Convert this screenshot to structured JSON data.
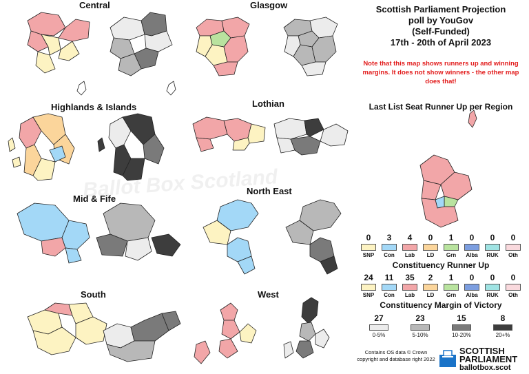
{
  "title_lines": [
    "Scottish Parliament Projection",
    "poll by YouGov",
    "(Self-Funded)",
    "17th - 20th of April 2023"
  ],
  "note": "Note that this map shows runners up and winning margins. It does not show winners - the other map does that!",
  "watermark": "Ballot Box Scotland",
  "regions": [
    "Central",
    "Glasgow",
    "Highlands & Islands",
    "Lothian",
    "Mid & Fife",
    "North East",
    "South",
    "West"
  ],
  "colors": {
    "snp": "#fdf3c2",
    "con": "#a3d8f7",
    "lab": "#f2a6a8",
    "ld": "#fbd59b",
    "grn": "#b9e39f",
    "alba": "#7c9ee0",
    "ruk": "#9fe3e3",
    "oth": "#f9d9dd",
    "m1": "#ececec",
    "m2": "#b8b8b8",
    "m3": "#7a7a7a",
    "m4": "#3d3d3d"
  },
  "list_runner_up": {
    "heading": "Last List Seat Runner Up per Region",
    "parties": [
      {
        "label": "SNP",
        "count": "0",
        "color": "#fdf3c2"
      },
      {
        "label": "Con",
        "count": "3",
        "color": "#a3d8f7"
      },
      {
        "label": "Lab",
        "count": "4",
        "color": "#f2a6a8"
      },
      {
        "label": "LD",
        "count": "0",
        "color": "#fbd59b"
      },
      {
        "label": "Grn",
        "count": "1",
        "color": "#b9e39f"
      },
      {
        "label": "Alba",
        "count": "0",
        "color": "#7c9ee0"
      },
      {
        "label": "RUK",
        "count": "0",
        "color": "#9fe3e3"
      },
      {
        "label": "Oth",
        "count": "0",
        "color": "#f9d9dd"
      }
    ]
  },
  "constituency_runner_up": {
    "heading": "Constituency Runner Up",
    "parties": [
      {
        "label": "SNP",
        "count": "24",
        "color": "#fdf3c2"
      },
      {
        "label": "Con",
        "count": "11",
        "color": "#a3d8f7"
      },
      {
        "label": "Lab",
        "count": "35",
        "color": "#f2a6a8"
      },
      {
        "label": "LD",
        "count": "2",
        "color": "#fbd59b"
      },
      {
        "label": "Grn",
        "count": "1",
        "color": "#b9e39f"
      },
      {
        "label": "Alba",
        "count": "0",
        "color": "#7c9ee0"
      },
      {
        "label": "RUK",
        "count": "0",
        "color": "#9fe3e3"
      },
      {
        "label": "Oth",
        "count": "0",
        "color": "#f9d9dd"
      }
    ]
  },
  "margin": {
    "heading": "Constituency Margin of Victory",
    "bins": [
      {
        "label": "0-5%",
        "count": "27",
        "color": "#ececec"
      },
      {
        "label": "5-10%",
        "count": "23",
        "color": "#b8b8b8"
      },
      {
        "label": "10-20%",
        "count": "15",
        "color": "#7a7a7a"
      },
      {
        "label": "20+%",
        "count": "8",
        "color": "#3d3d3d"
      }
    ]
  },
  "credits": [
    "Contains OS data © Crown",
    "copyright and database right 2022"
  ],
  "logo": {
    "line1": "SCOTTISH",
    "line2": "PARLIAMENT",
    "line3": "ballotbox.scot"
  }
}
